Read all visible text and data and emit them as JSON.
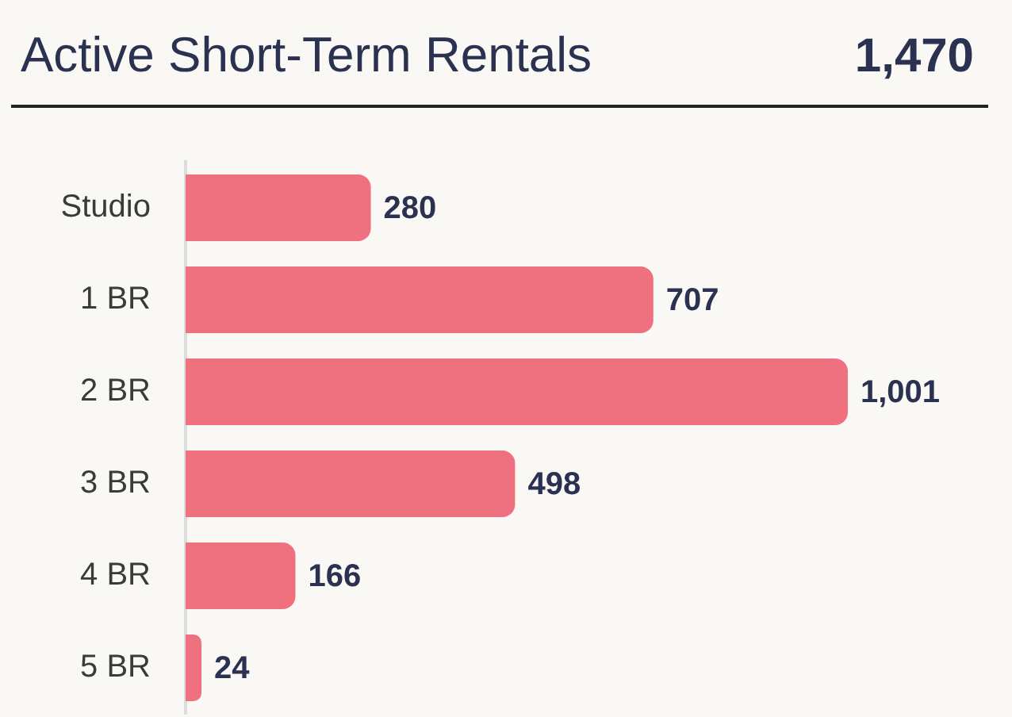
{
  "chart_data": {
    "type": "bar",
    "orientation": "horizontal",
    "title": "Active Short-Term Rentals",
    "annotations": [
      "1,470"
    ],
    "categories": [
      "Studio",
      "1 BR",
      "2 BR",
      "3 BR",
      "4 BR",
      "5 BR"
    ],
    "values": [
      280,
      707,
      1001,
      498,
      166,
      24
    ],
    "value_labels": [
      "280",
      "707",
      "1,001",
      "498",
      "166",
      "24"
    ],
    "color": "#ef717f",
    "grid": false,
    "legend": false,
    "tick_labels": "y"
  }
}
